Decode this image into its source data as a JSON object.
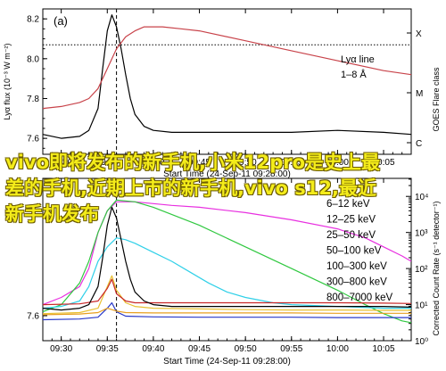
{
  "chart_data": [
    {
      "type": "line",
      "panel_letter": "(a)",
      "xlabel": "Start Time (24-Sep-11 09:28:00)",
      "ylabel": "Lyα flux (10⁻³ W m⁻²)",
      "ylabel_right": "GOES Flare class",
      "x_ticks": [
        "09:30",
        "09:35",
        "09:40",
        "09:45",
        "09:50",
        "09:55",
        "10:00",
        "10:05"
      ],
      "y_ticks": [
        "7.6",
        "7.8",
        "8.0",
        "8.2"
      ],
      "right_ticks": [
        "X",
        "M",
        "C"
      ],
      "xlim": [
        "09:28",
        "10:08"
      ],
      "ylim": [
        7.52,
        8.25
      ],
      "legend": {
        "position": "top-right",
        "entries": [
          "Lyα line",
          "1–8 Å"
        ]
      },
      "series": [
        {
          "name": "Lyα line",
          "color": "#000000",
          "axis": "left",
          "x": [
            "09:28",
            "09:30",
            "09:32",
            "09:33",
            "09:34",
            "09:34.5",
            "09:35",
            "09:35.5",
            "09:36",
            "09:36.5",
            "09:37",
            "09:37.5",
            "09:38",
            "09:39",
            "09:40",
            "09:42",
            "09:45",
            "09:50",
            "09:55",
            "10:00",
            "10:05",
            "10:08"
          ],
          "y": [
            7.62,
            7.6,
            7.61,
            7.64,
            7.75,
            7.95,
            8.14,
            8.22,
            8.16,
            8.05,
            7.92,
            7.8,
            7.72,
            7.66,
            7.64,
            7.63,
            7.63,
            7.63,
            7.63,
            7.64,
            7.63,
            7.62
          ]
        },
        {
          "name": "1–8 Å",
          "color": "#c8434a",
          "axis": "right",
          "x": [
            "09:28",
            "09:30",
            "09:32",
            "09:33",
            "09:34",
            "09:35",
            "09:36",
            "09:37",
            "09:38",
            "09:39",
            "09:40",
            "09:41",
            "09:43",
            "09:45",
            "09:50",
            "09:55",
            "10:00",
            "10:05",
            "10:08"
          ],
          "y": [
            7.75,
            7.76,
            7.78,
            7.8,
            7.85,
            7.95,
            8.05,
            8.11,
            8.14,
            8.16,
            8.16,
            8.16,
            8.15,
            8.14,
            8.09,
            8.04,
            7.99,
            7.94,
            7.92
          ]
        }
      ],
      "reference_lines": {
        "horizontal_y": 8.07,
        "vertical_x": "09:36"
      }
    },
    {
      "type": "line",
      "xlabel": "Start Time (24-Sep-11 09:28:00)",
      "ylabel_right": "Corrected Count Rate (s⁻¹ detector⁻¹)",
      "x_ticks": [
        "09:30",
        "09:35",
        "09:40",
        "09:45",
        "09:50",
        "09:55",
        "10:00",
        "10:05"
      ],
      "y_ticks": [
        "7.6"
      ],
      "right_ticks": [
        "10⁴",
        "10³",
        "10²",
        "10¹",
        "10⁰"
      ],
      "xlim": [
        "09:28",
        "10:08"
      ],
      "legend": {
        "position": "top-right",
        "entries": [
          "6–12 keV",
          "12–25 keV",
          "25–50 keV",
          "50–100 keV",
          "100–300 keV",
          "300–800 keV",
          "800–7000 keV"
        ]
      },
      "series": [
        {
          "name": "6–12 keV",
          "color": "#e830e0",
          "x": [
            "09:28",
            "09:30",
            "09:32",
            "09:33",
            "09:34",
            "09:35",
            "09:36",
            "09:38",
            "09:40",
            "09:42",
            "09:45",
            "09:50",
            "09:55",
            "10:00",
            "10:03",
            "10:05",
            "10:07",
            "10:08"
          ],
          "y": [
            1.0,
            1.2,
            1.5,
            2.0,
            3.0,
            3.6,
            3.85,
            3.85,
            3.8,
            3.75,
            3.7,
            3.55,
            3.35,
            3.1,
            2.85,
            2.6,
            2.35,
            2.2
          ]
        },
        {
          "name": "12–25 keV",
          "color": "#30c840",
          "x": [
            "09:28",
            "09:30",
            "09:32",
            "09:33",
            "09:34",
            "09:35",
            "09:36",
            "09:38",
            "09:40",
            "09:45",
            "09:50",
            "09:55",
            "10:00",
            "10:03",
            "10:05",
            "10:07",
            "10:08"
          ],
          "y": [
            0.8,
            1.0,
            1.6,
            2.2,
            3.0,
            3.6,
            3.9,
            3.85,
            3.7,
            3.2,
            2.6,
            2.0,
            1.4,
            1.0,
            0.75,
            0.55,
            0.5
          ]
        },
        {
          "name": "25–50 keV",
          "color": "#30d0e8",
          "x": [
            "09:28",
            "09:30",
            "09:32",
            "09:33",
            "09:34",
            "09:35",
            "09:36",
            "09:37",
            "09:38",
            "09:40",
            "09:42",
            "09:44",
            "09:46",
            "09:48",
            "09:50",
            "09:53",
            "09:55",
            "10:00",
            "10:05",
            "10:08"
          ],
          "y": [
            0.9,
            0.95,
            1.1,
            1.5,
            2.2,
            2.6,
            2.85,
            2.8,
            2.7,
            2.45,
            2.2,
            1.9,
            1.6,
            1.35,
            1.2,
            1.05,
            1.0,
            0.95,
            0.9,
            0.9
          ]
        },
        {
          "name": "50–100 keV",
          "color": "#e8c030",
          "x": [
            "09:28",
            "09:32",
            "09:34",
            "09:35",
            "09:35.5",
            "09:36",
            "09:37",
            "09:38",
            "09:40",
            "09:45",
            "09:50",
            "09:55",
            "10:00",
            "10:05",
            "10:08"
          ],
          "y": [
            0.75,
            0.78,
            0.9,
            1.5,
            1.8,
            1.4,
            1.05,
            0.95,
            0.9,
            0.88,
            0.86,
            0.85,
            0.85,
            0.84,
            0.84
          ]
        },
        {
          "name": "100–300 keV",
          "color": "#c82828",
          "x": [
            "09:28",
            "09:32",
            "09:34",
            "09:35",
            "09:35.5",
            "09:36",
            "09:37",
            "09:38",
            "09:40",
            "09:45",
            "09:50",
            "09:55",
            "10:00",
            "10:05",
            "10:08"
          ],
          "y": [
            1.0,
            1.02,
            1.1,
            1.45,
            1.7,
            1.3,
            1.1,
            1.05,
            1.05,
            1.05,
            1.05,
            1.05,
            1.05,
            1.04,
            1.03
          ]
        },
        {
          "name": "300–800 keV",
          "color": "#2838c8",
          "x": [
            "09:28",
            "09:32",
            "09:34",
            "09:35",
            "09:35.5",
            "09:36",
            "09:37",
            "09:40",
            "09:45",
            "09:50",
            "09:55",
            "10:00",
            "10:05",
            "10:08"
          ],
          "y": [
            0.58,
            0.6,
            0.65,
            0.9,
            1.05,
            0.8,
            0.68,
            0.66,
            0.65,
            0.65,
            0.65,
            0.64,
            0.64,
            0.64
          ]
        },
        {
          "name": "800–7000 keV",
          "color": "#e8a020",
          "x": [
            "09:28",
            "09:32",
            "09:34",
            "09:35",
            "09:36",
            "09:37",
            "09:40",
            "09:45",
            "09:50",
            "09:55",
            "10:00",
            "10:05",
            "10:08"
          ],
          "y": [
            0.72,
            0.74,
            0.78,
            0.9,
            0.82,
            0.78,
            0.77,
            0.77,
            0.77,
            0.77,
            0.76,
            0.76,
            0.76
          ]
        },
        {
          "name": "Lyα line",
          "color": "#000000",
          "x": [
            "09:28",
            "09:30",
            "09:32",
            "09:33",
            "09:34",
            "09:34.5",
            "09:35",
            "09:35.5",
            "09:36",
            "09:36.5",
            "09:37",
            "09:37.5",
            "09:38",
            "09:39",
            "09:40",
            "09:42",
            "09:45",
            "09:50",
            "09:55",
            "10:00",
            "10:05",
            "10:08"
          ],
          "y": [
            0.9,
            0.85,
            0.9,
            1.0,
            1.5,
            2.3,
            3.2,
            3.7,
            3.4,
            2.8,
            2.2,
            1.7,
            1.35,
            1.1,
            1.0,
            0.95,
            0.95,
            0.95,
            0.95,
            0.95,
            0.95,
            0.93
          ]
        }
      ],
      "reference_lines": {
        "vertical_x": "09:36"
      }
    }
  ],
  "overlay_text": "vivo即将发布的新手机,小米12pro是史上最差的手机,近期上市的新手机,vivo s12,最近新手机发布"
}
